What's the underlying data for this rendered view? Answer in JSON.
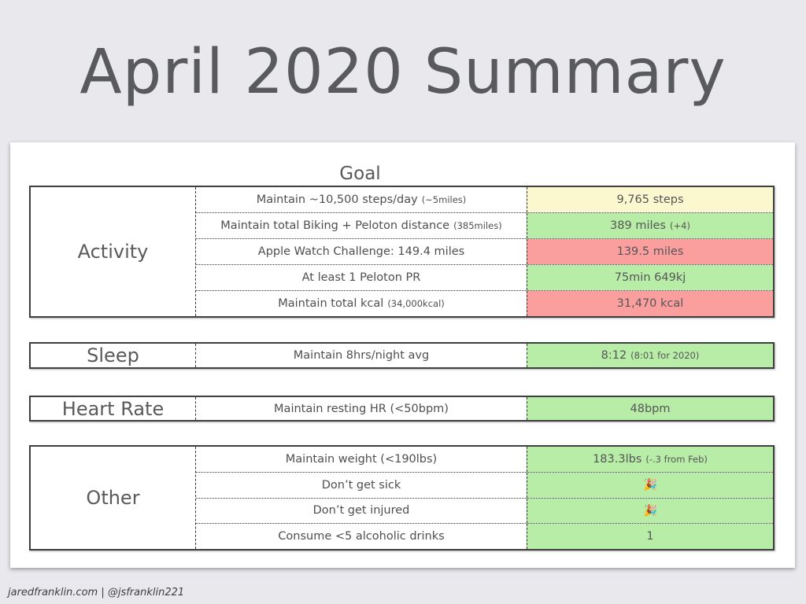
{
  "title": "April 2020 Summary",
  "footer": "jaredfranklin.com | @jsfranklin221",
  "colors": {
    "met": "#b7eda7",
    "missed": "#fb9e9e",
    "partial": "#fbf8d0"
  },
  "table": {
    "goal_header": "Goal",
    "sections": [
      {
        "label": "Activity",
        "rows": [
          {
            "goal": "Maintain ~10,500 steps/day",
            "goal_note": "(~5miles)",
            "result": "9,765 steps",
            "result_note": "",
            "status": "partial"
          },
          {
            "goal": "Maintain total Biking + Peloton distance",
            "goal_note": "(385miles)",
            "result": "389 miles",
            "result_note": "(+4)",
            "status": "met"
          },
          {
            "goal": "Apple Watch Challenge: 149.4 miles",
            "goal_note": "",
            "result": "139.5 miles",
            "result_note": "",
            "status": "missed"
          },
          {
            "goal": "At least 1 Peloton PR",
            "goal_note": "",
            "result": "75min 649kj",
            "result_note": "",
            "status": "met"
          },
          {
            "goal": "Maintain total kcal",
            "goal_note": "(34,000kcal)",
            "result": "31,470 kcal",
            "result_note": "",
            "status": "missed"
          }
        ]
      },
      {
        "label": "Sleep",
        "rows": [
          {
            "goal": "Maintain 8hrs/night avg",
            "goal_note": "",
            "result": "8:12",
            "result_note": "(8:01 for 2020)",
            "status": "met"
          }
        ]
      },
      {
        "label": "Heart Rate",
        "rows": [
          {
            "goal": "Maintain resting HR (<50bpm)",
            "goal_note": "",
            "result": "48bpm",
            "result_note": "",
            "status": "met"
          }
        ]
      },
      {
        "label": "Other",
        "rows": [
          {
            "goal": "Maintain weight (<190lbs)",
            "goal_note": "",
            "result": "183.3lbs",
            "result_note": "(-.3 from Feb)",
            "status": "met"
          },
          {
            "goal": "Don’t get sick",
            "goal_note": "",
            "result": "🎉",
            "result_note": "",
            "status": "met"
          },
          {
            "goal": "Don’t get injured",
            "goal_note": "",
            "result": "🎉",
            "result_note": "",
            "status": "met"
          },
          {
            "goal": "Consume <5 alcoholic drinks",
            "goal_note": "",
            "result": "1",
            "result_note": "",
            "status": "met"
          }
        ]
      }
    ]
  }
}
